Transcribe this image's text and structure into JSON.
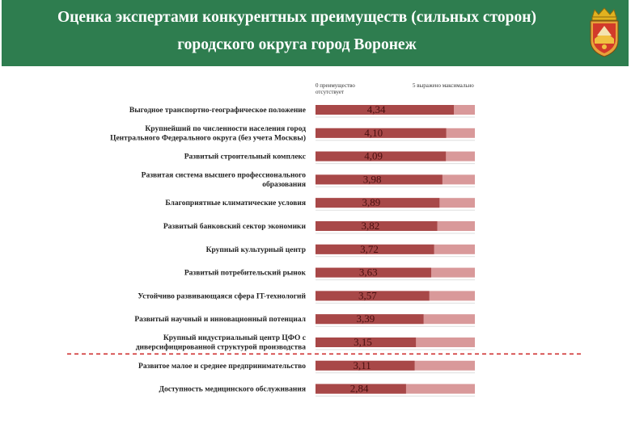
{
  "header": {
    "title_line1": "Оценка экспертами конкурентных преимуществ (сильных сторон)",
    "title_line2": "городского округа город Воронеж",
    "emblem_icon": "coat-of-arms-icon"
  },
  "colors": {
    "header_bg": "#2e7d4f",
    "bar_value": "#a84848",
    "bar_remainder": "#d9999a",
    "threshold_line": "#cc2222"
  },
  "chart_data": {
    "type": "bar",
    "orientation": "horizontal",
    "scale_min_note": "0   преимущество отсутствует",
    "scale_max_note": "5   выражено максимально",
    "xlim": [
      0,
      5
    ],
    "categories": [
      "Выгодное транспортно-географическое  положение",
      "Крупнейший по численности населения город Центрального  Федерального округа (без учета Москвы)",
      "Развитый строительный комплекс",
      "Развитая система высшего профессионального образования",
      "Благоприятные климатические  условия",
      "Развитый банковский сектор экономики",
      "Крупный культурный центр",
      "Развитый потребительский  рынок",
      "Устойчиво развивающаяся сфера IT-технологий",
      "Развитый научный и инновационный  потенциал",
      "Крупный индустриальный центр ЦФО с диверсифицированной структурой производства",
      "Развитое малое и среднее предпринимательство",
      "Доступность  медицинского обслуживания"
    ],
    "values": [
      4.34,
      4.1,
      4.09,
      3.98,
      3.89,
      3.82,
      3.72,
      3.63,
      3.57,
      3.39,
      3.15,
      3.11,
      2.84
    ],
    "value_labels": [
      "4,34",
      "4,10",
      "4,09",
      "3,98",
      "3,89",
      "3,82",
      "3,72",
      "3,63",
      "3,57",
      "3,39",
      "3,15",
      "3,11",
      "2,84"
    ],
    "label_lines": [
      [
        "Выгодное транспортно-географическое  положение"
      ],
      [
        "Крупнейший по численности населения город",
        "Центрального  Федерального округа (без учета Москвы)"
      ],
      [
        "Развитый строительный комплекс"
      ],
      [
        "Развитая система высшего профессионального",
        "образования"
      ],
      [
        "Благоприятные климатические  условия"
      ],
      [
        "Развитый банковский сектор экономики"
      ],
      [
        "Крупный культурный центр"
      ],
      [
        "Развитый потребительский  рынок"
      ],
      [
        "Устойчиво развивающаяся сфера IT-технологий"
      ],
      [
        "Развитый научный и инновационный  потенциал"
      ],
      [
        "Крупный индустриальный центр ЦФО с",
        "диверсифицированной структурой производства"
      ],
      [
        "Развитое малое и среднее предпринимательство"
      ],
      [
        "Доступность  медицинского обслуживания"
      ]
    ],
    "threshold_after_index": 10,
    "grid": false,
    "legend": "none"
  }
}
